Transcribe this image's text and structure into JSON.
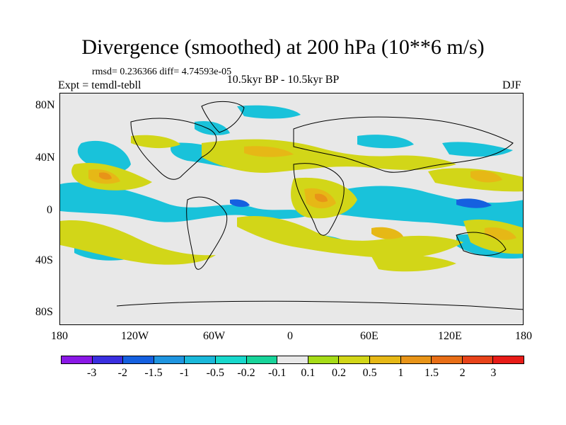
{
  "title": "Divergence (smoothed) at 200 hPa (10**6 m/s)",
  "stats": "rmsd= 0.236366 diff= 4.74593e-05",
  "experiment": "Expt = temdl-tebll",
  "period": "10.5kyr BP - 10.5kyr BP",
  "season": "DJF",
  "lat_labels": [
    "80N",
    "40N",
    "0",
    "40S",
    "80S"
  ],
  "lon_labels": [
    "180",
    "120W",
    "60W",
    "0",
    "60E",
    "120E",
    "180"
  ],
  "colorbar": {
    "colors": [
      "#8a18e6",
      "#3a2fe0",
      "#1560e0",
      "#1f95e0",
      "#1ab8da",
      "#18d8cc",
      "#18d49a",
      "#e8e8e8",
      "#a6dc18",
      "#d2d618",
      "#e6b816",
      "#e89418",
      "#e86e16",
      "#e8431a",
      "#e81c18"
    ],
    "labels": [
      "-3",
      "-2",
      "-1.5",
      "-1",
      "-0.5",
      "-0.2",
      "-0.1",
      "0.1",
      "0.2",
      "0.5",
      "1",
      "1.5",
      "2",
      "3"
    ]
  }
}
